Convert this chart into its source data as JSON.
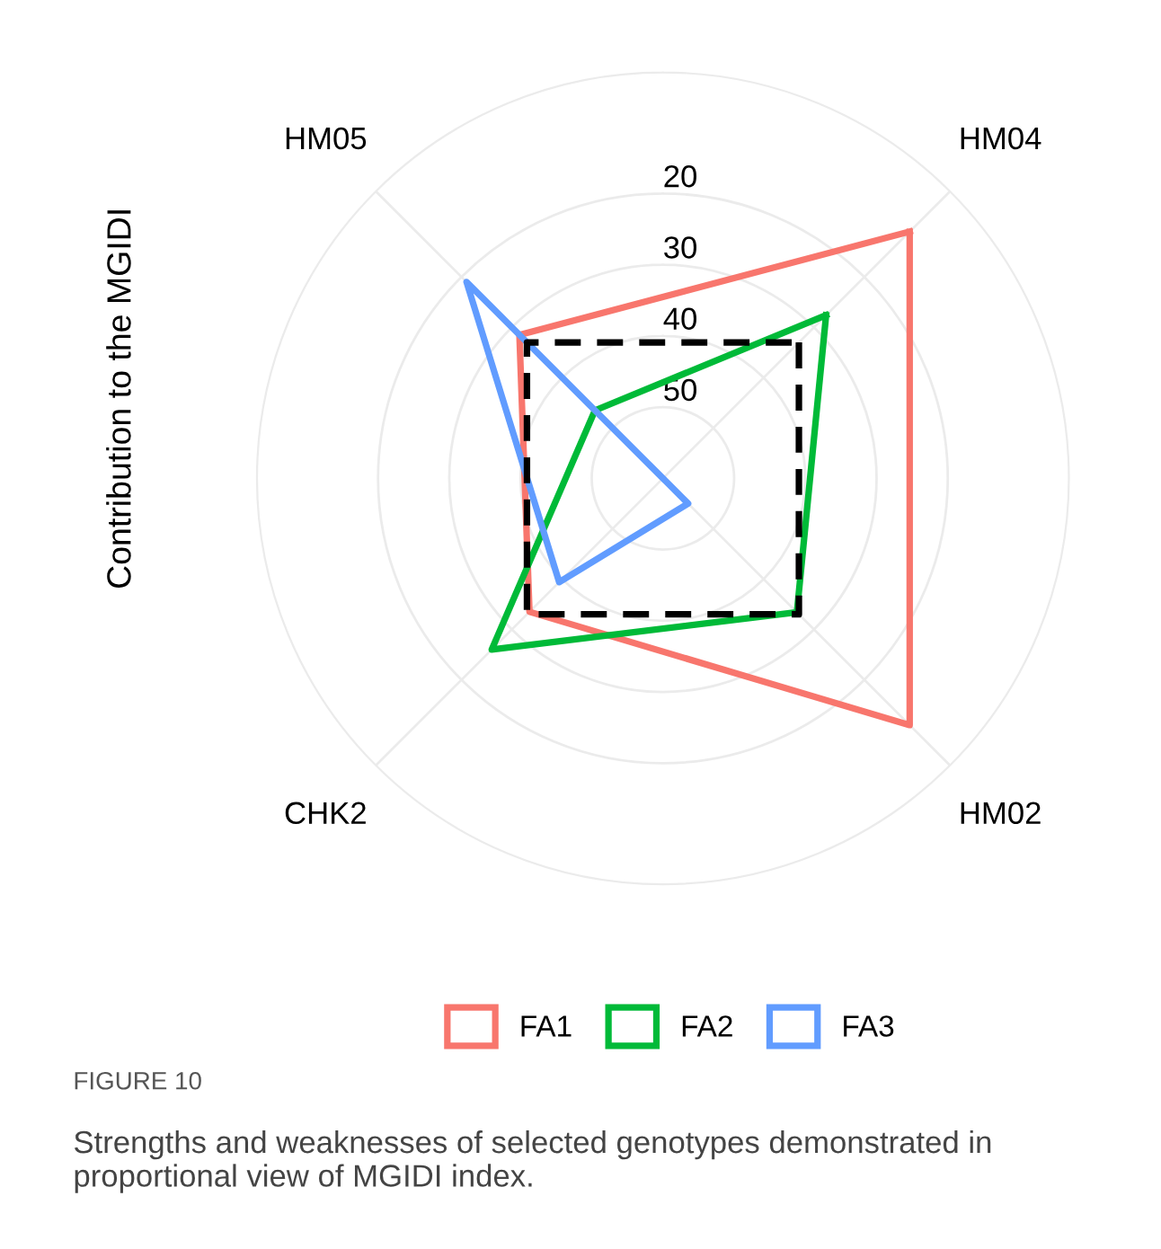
{
  "chart_data": {
    "type": "radar",
    "ylabel": "Contribution to the MGIDI",
    "categories": [
      "HM04",
      "HM02",
      "CHK2",
      "HM05"
    ],
    "series": [
      {
        "name": "FA1",
        "color": "#f8766d",
        "values": [
          11,
          11,
          33.5,
          31.5
        ]
      },
      {
        "name": "FA2",
        "color": "#00ba38",
        "values": [
          27.6,
          33.4,
          26,
          46.5
        ]
      },
      {
        "name": "FA3",
        "color": "#619cff",
        "values": [
          60,
          55,
          39.4,
          21
        ]
      },
      {
        "color": "#000000",
        "line_style": "dashed",
        "values": [
          33,
          33,
          33,
          33
        ]
      }
    ],
    "ylim": [
      60,
      3
    ],
    "yticks": [
      20,
      30,
      40,
      50
    ],
    "grid": true,
    "legend": "bottom",
    "annotations": [
      "FIGURE 10",
      "Strengths and weaknesses of selected genotypes demonstrated in proportional view of MGIDI index."
    ]
  }
}
